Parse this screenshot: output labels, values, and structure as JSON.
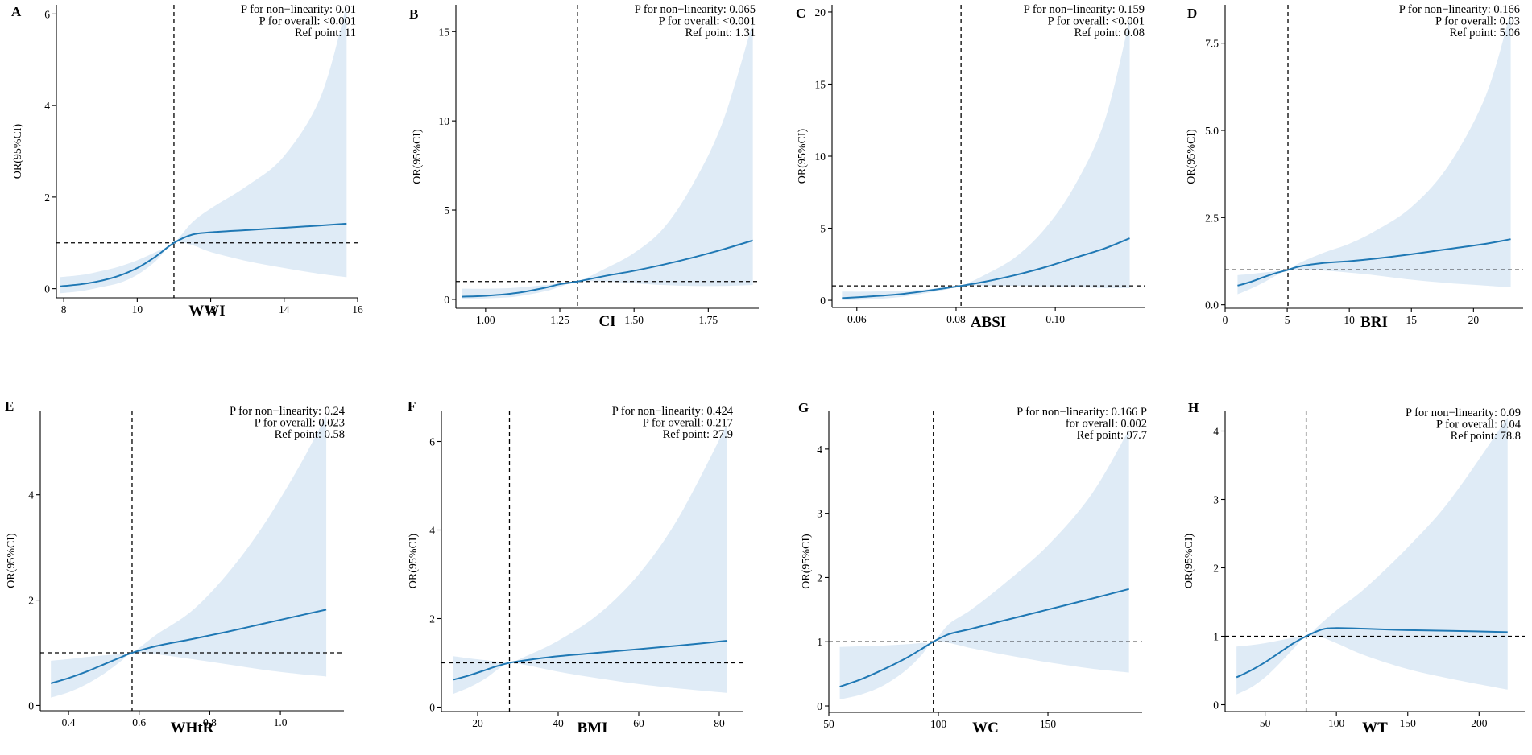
{
  "figure": {
    "y_axis_label": "OR(95%CI)",
    "stat_labels": {
      "nonlin": "P for non−linearity:",
      "overall": "P for overall:",
      "ref": "Ref point:"
    }
  },
  "chart_data": [
    {
      "type": "line",
      "panel": "A",
      "xlabel": "WWI",
      "ylabel": "OR(95%CI)",
      "xlim": [
        7.8,
        16
      ],
      "ylim": [
        -0.2,
        6.2
      ],
      "xticks": [
        8,
        10,
        12,
        14,
        16
      ],
      "yticks": [
        0,
        2,
        4,
        6
      ],
      "tick_labels_x": [
        "8",
        "10",
        "12",
        "14",
        "16"
      ],
      "tick_labels_y": [
        "0",
        "2",
        "4",
        "6"
      ],
      "ref_point": 11,
      "ref_y": 1,
      "p_nonlinearity": "0.01",
      "p_overall": "<0.001",
      "ref_point_text": "11",
      "series": [
        {
          "name": "OR",
          "x": [
            7.9,
            8.5,
            9,
            9.5,
            10,
            10.5,
            11,
            11.5,
            12,
            13,
            14,
            15,
            15.7
          ],
          "values": [
            0.05,
            0.1,
            0.17,
            0.28,
            0.45,
            0.7,
            1.0,
            1.18,
            1.23,
            1.28,
            1.33,
            1.38,
            1.42
          ]
        },
        {
          "name": "CI lower",
          "x": [
            7.9,
            8.5,
            9,
            9.5,
            10,
            10.5,
            11,
            11.5,
            12,
            13,
            14,
            15,
            15.7
          ],
          "values": [
            -0.1,
            -0.05,
            0.03,
            0.12,
            0.3,
            0.6,
            1.0,
            0.95,
            0.8,
            0.6,
            0.45,
            0.32,
            0.25
          ]
        },
        {
          "name": "CI upper",
          "x": [
            7.9,
            8.5,
            9,
            9.5,
            10,
            10.5,
            11,
            11.5,
            12,
            13,
            14,
            15,
            15.7
          ],
          "values": [
            0.25,
            0.3,
            0.38,
            0.48,
            0.62,
            0.8,
            1.0,
            1.45,
            1.75,
            2.25,
            2.9,
            4.2,
            6.2
          ]
        }
      ]
    },
    {
      "type": "line",
      "panel": "B",
      "xlabel": "CI",
      "ylabel": "OR(95%CI)",
      "xlim": [
        0.9,
        1.92
      ],
      "ylim": [
        -0.5,
        16.5
      ],
      "xticks": [
        1.0,
        1.25,
        1.5,
        1.75
      ],
      "yticks": [
        0,
        5,
        10,
        15
      ],
      "tick_labels_x": [
        "1.00",
        "1.25",
        "1.50",
        "1.75"
      ],
      "tick_labels_y": [
        "0",
        "5",
        "10",
        "15"
      ],
      "ref_point": 1.31,
      "ref_y": 1,
      "p_nonlinearity": "0.065",
      "p_overall": "<0.001",
      "ref_point_text": "1.31",
      "series": [
        {
          "name": "OR",
          "x": [
            0.92,
            1.0,
            1.1,
            1.2,
            1.25,
            1.31,
            1.4,
            1.5,
            1.6,
            1.7,
            1.8,
            1.9
          ],
          "values": [
            0.15,
            0.2,
            0.35,
            0.65,
            0.85,
            1.0,
            1.3,
            1.6,
            1.95,
            2.35,
            2.8,
            3.3
          ]
        },
        {
          "name": "CI lower",
          "x": [
            0.92,
            1.0,
            1.1,
            1.2,
            1.25,
            1.31,
            1.4,
            1.5,
            1.6,
            1.7,
            1.8,
            1.9
          ],
          "values": [
            0.0,
            0.05,
            0.15,
            0.45,
            0.7,
            1.0,
            1.0,
            0.9,
            0.8,
            0.75,
            0.75,
            0.8
          ]
        },
        {
          "name": "CI upper",
          "x": [
            0.92,
            1.0,
            1.1,
            1.2,
            1.25,
            1.31,
            1.4,
            1.5,
            1.6,
            1.7,
            1.8,
            1.9
          ],
          "values": [
            0.6,
            0.6,
            0.65,
            0.8,
            0.9,
            1.0,
            1.7,
            2.6,
            4.0,
            6.5,
            10.0,
            15.5
          ]
        }
      ]
    },
    {
      "type": "line",
      "panel": "C",
      "xlabel": "ABSI",
      "ylabel": "OR(95%CI)",
      "xlim": [
        0.055,
        0.118
      ],
      "ylim": [
        -0.5,
        20.5
      ],
      "xticks": [
        0.06,
        0.08,
        0.1
      ],
      "yticks": [
        0,
        5,
        10,
        15,
        20
      ],
      "tick_labels_x": [
        "0.06",
        "0.08",
        "0.10"
      ],
      "tick_labels_y": [
        "0",
        "5",
        "10",
        "15",
        "20"
      ],
      "ref_point": 0.081,
      "ref_y": 1,
      "p_nonlinearity": "0.159",
      "p_overall": "<0.001",
      "ref_point_text": "0.08",
      "series": [
        {
          "name": "OR",
          "x": [
            0.057,
            0.062,
            0.068,
            0.074,
            0.078,
            0.081,
            0.086,
            0.092,
            0.098,
            0.104,
            0.11,
            0.115
          ],
          "values": [
            0.15,
            0.25,
            0.4,
            0.65,
            0.85,
            1.0,
            1.3,
            1.75,
            2.3,
            2.95,
            3.6,
            4.3
          ]
        },
        {
          "name": "CI lower",
          "x": [
            0.057,
            0.062,
            0.068,
            0.074,
            0.078,
            0.081,
            0.086,
            0.092,
            0.098,
            0.104,
            0.11,
            0.115
          ],
          "values": [
            0.0,
            0.05,
            0.2,
            0.5,
            0.75,
            1.0,
            1.0,
            1.0,
            0.95,
            0.9,
            0.85,
            0.85
          ]
        },
        {
          "name": "CI upper",
          "x": [
            0.057,
            0.062,
            0.068,
            0.074,
            0.078,
            0.081,
            0.086,
            0.092,
            0.098,
            0.104,
            0.11,
            0.115
          ],
          "values": [
            0.6,
            0.6,
            0.65,
            0.75,
            0.9,
            1.0,
            1.8,
            3.0,
            5.0,
            8.0,
            12.5,
            19.5
          ]
        }
      ]
    },
    {
      "type": "line",
      "panel": "D",
      "xlabel": "BRI",
      "ylabel": "OR(95%CI)",
      "xlim": [
        0,
        24
      ],
      "ylim": [
        -0.1,
        8.6
      ],
      "xticks": [
        0,
        5,
        10,
        15,
        20
      ],
      "yticks": [
        0,
        2.5,
        5,
        7.5
      ],
      "tick_labels_x": [
        "0",
        "5",
        "10",
        "15",
        "20"
      ],
      "tick_labels_y": [
        "0.0",
        "2.5",
        "5.0",
        "7.5"
      ],
      "ref_point": 5.06,
      "ref_y": 1,
      "p_nonlinearity": "0.166",
      "p_overall": "0.03",
      "ref_point_text": "5.06",
      "series": [
        {
          "name": "OR",
          "x": [
            1,
            2,
            3,
            4,
            5.06,
            6,
            8,
            10,
            12,
            15,
            18,
            21,
            23
          ],
          "values": [
            0.55,
            0.65,
            0.78,
            0.9,
            1.0,
            1.1,
            1.2,
            1.25,
            1.32,
            1.45,
            1.6,
            1.75,
            1.88
          ]
        },
        {
          "name": "CI lower",
          "x": [
            1,
            2,
            3,
            4,
            5.06,
            6,
            8,
            10,
            12,
            15,
            18,
            21,
            23
          ],
          "values": [
            0.3,
            0.45,
            0.62,
            0.82,
            1.0,
            1.0,
            0.98,
            0.92,
            0.85,
            0.72,
            0.62,
            0.55,
            0.5
          ]
        },
        {
          "name": "CI upper",
          "x": [
            1,
            2,
            3,
            4,
            5.06,
            6,
            8,
            10,
            12,
            15,
            18,
            21,
            23
          ],
          "values": [
            0.85,
            0.88,
            0.92,
            0.96,
            1.0,
            1.2,
            1.5,
            1.75,
            2.1,
            2.8,
            4.0,
            6.0,
            8.4
          ]
        }
      ]
    },
    {
      "type": "line",
      "panel": "E",
      "xlabel": "WHtR",
      "ylabel": "OR(95%CI)",
      "xlim": [
        0.32,
        1.18
      ],
      "ylim": [
        -0.1,
        5.6
      ],
      "xticks": [
        0.4,
        0.6,
        0.8,
        1.0
      ],
      "yticks": [
        0,
        2,
        4
      ],
      "tick_labels_x": [
        "0.4",
        "0.6",
        "0.8",
        "1.0"
      ],
      "tick_labels_y": [
        "0",
        "2",
        "4"
      ],
      "ref_point": 0.58,
      "ref_y": 1,
      "p_nonlinearity": "0.24",
      "p_overall": "0.023",
      "ref_point_text": "0.58",
      "series": [
        {
          "name": "OR",
          "x": [
            0.35,
            0.4,
            0.45,
            0.5,
            0.55,
            0.58,
            0.65,
            0.75,
            0.85,
            0.95,
            1.05,
            1.13
          ],
          "values": [
            0.42,
            0.52,
            0.64,
            0.78,
            0.92,
            1.0,
            1.13,
            1.26,
            1.4,
            1.55,
            1.7,
            1.82
          ]
        },
        {
          "name": "CI lower",
          "x": [
            0.35,
            0.4,
            0.45,
            0.5,
            0.55,
            0.58,
            0.65,
            0.75,
            0.85,
            0.95,
            1.05,
            1.13
          ],
          "values": [
            0.15,
            0.25,
            0.4,
            0.6,
            0.85,
            1.0,
            0.97,
            0.88,
            0.78,
            0.68,
            0.6,
            0.55
          ]
        },
        {
          "name": "CI upper",
          "x": [
            0.35,
            0.4,
            0.45,
            0.5,
            0.55,
            0.58,
            0.65,
            0.75,
            0.85,
            0.95,
            1.05,
            1.13
          ],
          "values": [
            0.85,
            0.88,
            0.92,
            0.95,
            0.98,
            1.0,
            1.35,
            1.8,
            2.5,
            3.4,
            4.5,
            5.5
          ]
        }
      ]
    },
    {
      "type": "line",
      "panel": "F",
      "xlabel": "BMI",
      "ylabel": "OR(95%CI)",
      "xlim": [
        11,
        86
      ],
      "ylim": [
        -0.1,
        6.7
      ],
      "xticks": [
        20,
        40,
        60,
        80
      ],
      "yticks": [
        0,
        2,
        4,
        6
      ],
      "tick_labels_x": [
        "20",
        "40",
        "60",
        "80"
      ],
      "tick_labels_y": [
        "0",
        "2",
        "4",
        "6"
      ],
      "ref_point": 27.9,
      "ref_y": 1,
      "p_nonlinearity": "0.424",
      "p_overall": "0.217",
      "ref_point_text": "27.9",
      "series": [
        {
          "name": "OR",
          "x": [
            14,
            18,
            22,
            25,
            27.9,
            32,
            40,
            50,
            60,
            70,
            82
          ],
          "values": [
            0.62,
            0.72,
            0.84,
            0.93,
            1.0,
            1.06,
            1.15,
            1.23,
            1.31,
            1.39,
            1.5
          ]
        },
        {
          "name": "CI lower",
          "x": [
            14,
            18,
            22,
            25,
            27.9,
            32,
            40,
            50,
            60,
            70,
            82
          ],
          "values": [
            0.3,
            0.45,
            0.65,
            0.85,
            1.0,
            0.95,
            0.8,
            0.65,
            0.52,
            0.42,
            0.32
          ]
        },
        {
          "name": "CI upper",
          "x": [
            14,
            18,
            22,
            25,
            27.9,
            32,
            40,
            50,
            60,
            70,
            82
          ],
          "values": [
            1.15,
            1.1,
            1.06,
            1.03,
            1.0,
            1.15,
            1.5,
            2.1,
            3.0,
            4.3,
            6.4
          ]
        }
      ]
    },
    {
      "type": "line",
      "panel": "G",
      "xlabel": "WC",
      "ylabel": "OR(95%CI)",
      "xlim": [
        50,
        193
      ],
      "ylim": [
        -0.1,
        4.6
      ],
      "xticks": [
        50,
        100,
        150
      ],
      "yticks": [
        0,
        1,
        2,
        3,
        4
      ],
      "tick_labels_x": [
        "50",
        "100",
        "150"
      ],
      "tick_labels_y": [
        "0",
        "1",
        "2",
        "3",
        "4"
      ],
      "ref_point": 97.7,
      "ref_y": 1,
      "p_nonlinearity": "0.166 P",
      "p_overall_prefix": "for overall:",
      "p_overall": "0.002",
      "ref_point_text": "97.7",
      "series": [
        {
          "name": "OR",
          "x": [
            55,
            65,
            75,
            85,
            92,
            97.7,
            105,
            115,
            130,
            150,
            170,
            187
          ],
          "values": [
            0.3,
            0.42,
            0.57,
            0.74,
            0.88,
            1.0,
            1.12,
            1.2,
            1.33,
            1.5,
            1.67,
            1.82
          ]
        },
        {
          "name": "CI lower",
          "x": [
            55,
            65,
            75,
            85,
            92,
            97.7,
            105,
            115,
            130,
            150,
            170,
            187
          ],
          "values": [
            0.1,
            0.18,
            0.32,
            0.55,
            0.78,
            1.0,
            0.98,
            0.9,
            0.8,
            0.68,
            0.58,
            0.52
          ]
        },
        {
          "name": "CI upper",
          "x": [
            55,
            65,
            75,
            85,
            92,
            97.7,
            105,
            115,
            130,
            150,
            170,
            187
          ],
          "values": [
            0.92,
            0.93,
            0.94,
            0.96,
            0.98,
            1.0,
            1.28,
            1.5,
            1.9,
            2.5,
            3.3,
            4.3
          ]
        }
      ]
    },
    {
      "type": "line",
      "panel": "H",
      "xlabel": "WT",
      "ylabel": "OR(95%CI)",
      "xlim": [
        22,
        232
      ],
      "ylim": [
        -0.1,
        4.3
      ],
      "xticks": [
        50,
        100,
        150,
        200
      ],
      "yticks": [
        0,
        1,
        2,
        3,
        4
      ],
      "tick_labels_x": [
        "50",
        "100",
        "150",
        "200"
      ],
      "tick_labels_y": [
        "0",
        "1",
        "2",
        "3",
        "4"
      ],
      "ref_point": 78.8,
      "ref_y": 1,
      "p_nonlinearity": "0.09",
      "p_overall": "0.04",
      "ref_point_text": "78.8",
      "series": [
        {
          "name": "OR",
          "x": [
            30,
            40,
            50,
            60,
            70,
            78.8,
            90,
            100,
            120,
            150,
            180,
            220
          ],
          "values": [
            0.4,
            0.5,
            0.62,
            0.76,
            0.9,
            1.0,
            1.1,
            1.12,
            1.11,
            1.09,
            1.08,
            1.06
          ]
        },
        {
          "name": "CI lower",
          "x": [
            30,
            40,
            50,
            60,
            70,
            78.8,
            90,
            100,
            120,
            150,
            180,
            220
          ],
          "values": [
            0.15,
            0.25,
            0.4,
            0.6,
            0.82,
            1.0,
            0.98,
            0.9,
            0.72,
            0.52,
            0.38,
            0.22
          ]
        },
        {
          "name": "CI upper",
          "x": [
            30,
            40,
            50,
            60,
            70,
            78.8,
            90,
            100,
            120,
            150,
            180,
            220
          ],
          "values": [
            0.85,
            0.87,
            0.9,
            0.94,
            0.98,
            1.0,
            1.2,
            1.38,
            1.7,
            2.3,
            3.0,
            4.2
          ]
        }
      ]
    }
  ]
}
